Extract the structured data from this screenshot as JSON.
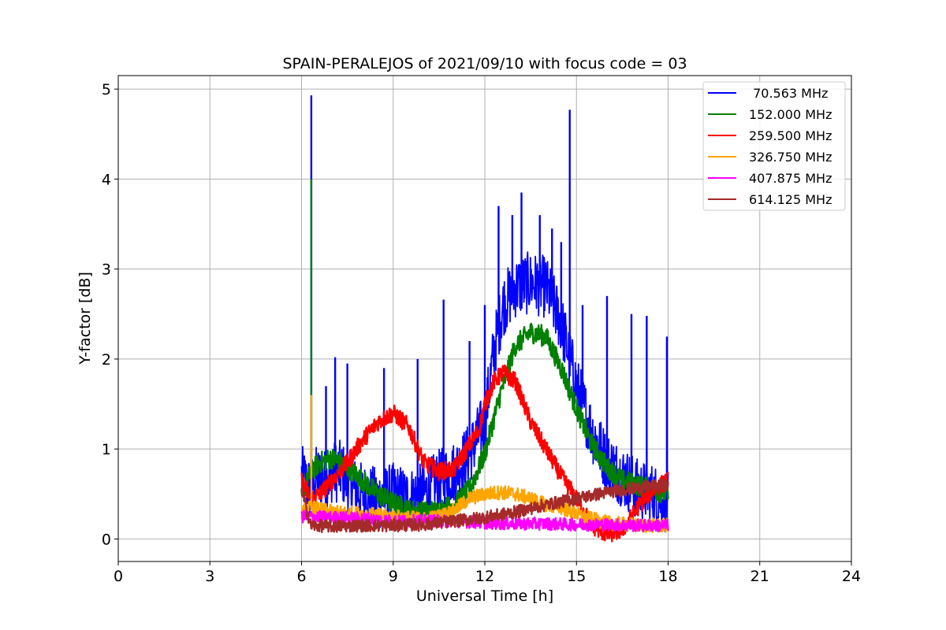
{
  "chart_data": {
    "type": "line",
    "title": "SPAIN-PERALEJOS of 2021/09/10 with focus code = 03",
    "xlabel": "Universal Time [h]",
    "ylabel": "Y-factor [dB]",
    "xlim": [
      0,
      24
    ],
    "ylim": [
      -0.25,
      5.15
    ],
    "xticks": [
      0,
      3,
      6,
      9,
      12,
      15,
      18,
      21,
      24
    ],
    "yticks": [
      0,
      1,
      2,
      3,
      4,
      5
    ],
    "grid": true,
    "legend_position": "top-right",
    "series": [
      {
        "name": " 70.563 MHz",
        "color": "#0000ff",
        "x": [
          6.0,
          6.3,
          6.5,
          6.8,
          7.0,
          7.3,
          7.6,
          8.0,
          8.5,
          9.0,
          9.5,
          10.0,
          10.5,
          11.0,
          11.5,
          12.0,
          12.3,
          12.6,
          13.0,
          13.5,
          14.0,
          14.5,
          15.0,
          15.5,
          16.0,
          16.5,
          17.0,
          17.5,
          18.0
        ],
        "y": [
          0.7,
          0.55,
          0.7,
          0.65,
          0.75,
          0.75,
          0.6,
          0.5,
          0.45,
          0.5,
          0.45,
          0.5,
          0.65,
          0.75,
          0.95,
          1.3,
          2.1,
          2.6,
          2.8,
          2.85,
          2.8,
          2.4,
          1.7,
          1.2,
          0.85,
          0.7,
          0.55,
          0.5,
          0.4
        ],
        "spikes": [
          [
            6.32,
            4.93
          ],
          [
            6.8,
            1.7
          ],
          [
            7.1,
            2.02
          ],
          [
            7.5,
            1.95
          ],
          [
            8.7,
            1.9
          ],
          [
            9.8,
            2.0
          ],
          [
            10.65,
            2.66
          ],
          [
            11.5,
            2.2
          ],
          [
            12.0,
            2.6
          ],
          [
            12.45,
            3.7
          ],
          [
            12.9,
            3.6
          ],
          [
            13.2,
            3.85
          ],
          [
            13.8,
            3.6
          ],
          [
            14.2,
            3.45
          ],
          [
            14.5,
            3.3
          ],
          [
            14.78,
            4.77
          ],
          [
            15.2,
            2.6
          ],
          [
            16.0,
            2.7
          ],
          [
            16.8,
            2.5
          ],
          [
            17.3,
            2.48
          ],
          [
            17.96,
            2.25
          ]
        ]
      },
      {
        "name": "152.000 MHz",
        "color": "#008000",
        "x": [
          6.0,
          6.3,
          6.6,
          7.0,
          7.5,
          8.0,
          8.5,
          9.0,
          9.5,
          10.0,
          10.5,
          11.0,
          11.5,
          12.0,
          12.5,
          13.0,
          13.5,
          14.0,
          14.5,
          15.0,
          15.5,
          16.0,
          16.5,
          17.0,
          17.5,
          18.0
        ],
        "y": [
          0.45,
          0.75,
          0.85,
          0.9,
          0.8,
          0.65,
          0.5,
          0.4,
          0.32,
          0.3,
          0.32,
          0.38,
          0.55,
          0.95,
          1.6,
          2.15,
          2.3,
          2.25,
          1.9,
          1.45,
          1.05,
          0.8,
          0.65,
          0.6,
          0.55,
          0.5
        ],
        "spikes": [
          [
            6.32,
            4.0
          ]
        ]
      },
      {
        "name": "259.500 MHz",
        "color": "#ff0000",
        "x": [
          6.0,
          6.3,
          6.6,
          7.0,
          7.5,
          8.0,
          8.5,
          9.0,
          9.5,
          10.0,
          10.5,
          11.0,
          11.5,
          11.8,
          12.0,
          12.3,
          12.6,
          13.0,
          13.5,
          14.0,
          14.5,
          15.0,
          15.5,
          16.0,
          16.5,
          17.0,
          17.5,
          18.0
        ],
        "y": [
          0.65,
          0.45,
          0.5,
          0.65,
          0.85,
          1.1,
          1.3,
          1.4,
          1.25,
          0.85,
          0.75,
          0.78,
          1.05,
          1.2,
          1.5,
          1.75,
          1.85,
          1.75,
          1.3,
          1.0,
          0.7,
          0.45,
          0.15,
          0.05,
          0.1,
          0.35,
          0.55,
          0.65
        ],
        "spikes": []
      },
      {
        "name": "326.750 MHz",
        "color": "#ffa500",
        "x": [
          6.0,
          6.3,
          7.0,
          8.0,
          9.0,
          10.0,
          10.5,
          11.0,
          11.5,
          12.0,
          12.5,
          13.0,
          13.5,
          14.0,
          14.5,
          15.0,
          15.5,
          16.0,
          17.0,
          18.0
        ],
        "y": [
          0.3,
          0.35,
          0.3,
          0.28,
          0.25,
          0.22,
          0.25,
          0.32,
          0.45,
          0.5,
          0.52,
          0.5,
          0.45,
          0.38,
          0.35,
          0.28,
          0.22,
          0.18,
          0.15,
          0.15
        ],
        "spikes": [
          [
            6.32,
            1.6
          ]
        ]
      },
      {
        "name": "407.875 MHz",
        "color": "#ff00ff",
        "x": [
          6.0,
          7.0,
          8.0,
          9.0,
          10.0,
          11.0,
          12.0,
          13.0,
          14.0,
          15.0,
          16.0,
          17.0,
          18.0
        ],
        "y": [
          0.25,
          0.24,
          0.23,
          0.2,
          0.2,
          0.2,
          0.18,
          0.17,
          0.17,
          0.16,
          0.16,
          0.15,
          0.15
        ],
        "spikes": []
      },
      {
        "name": "614.125 MHz",
        "color": "#a52a2a",
        "x": [
          6.0,
          6.3,
          7.0,
          8.0,
          9.0,
          10.0,
          11.0,
          12.0,
          13.0,
          14.0,
          15.0,
          16.0,
          17.0,
          18.0
        ],
        "y": [
          0.55,
          0.15,
          0.14,
          0.15,
          0.15,
          0.16,
          0.2,
          0.24,
          0.3,
          0.38,
          0.45,
          0.52,
          0.57,
          0.6
        ],
        "spikes": []
      }
    ]
  }
}
